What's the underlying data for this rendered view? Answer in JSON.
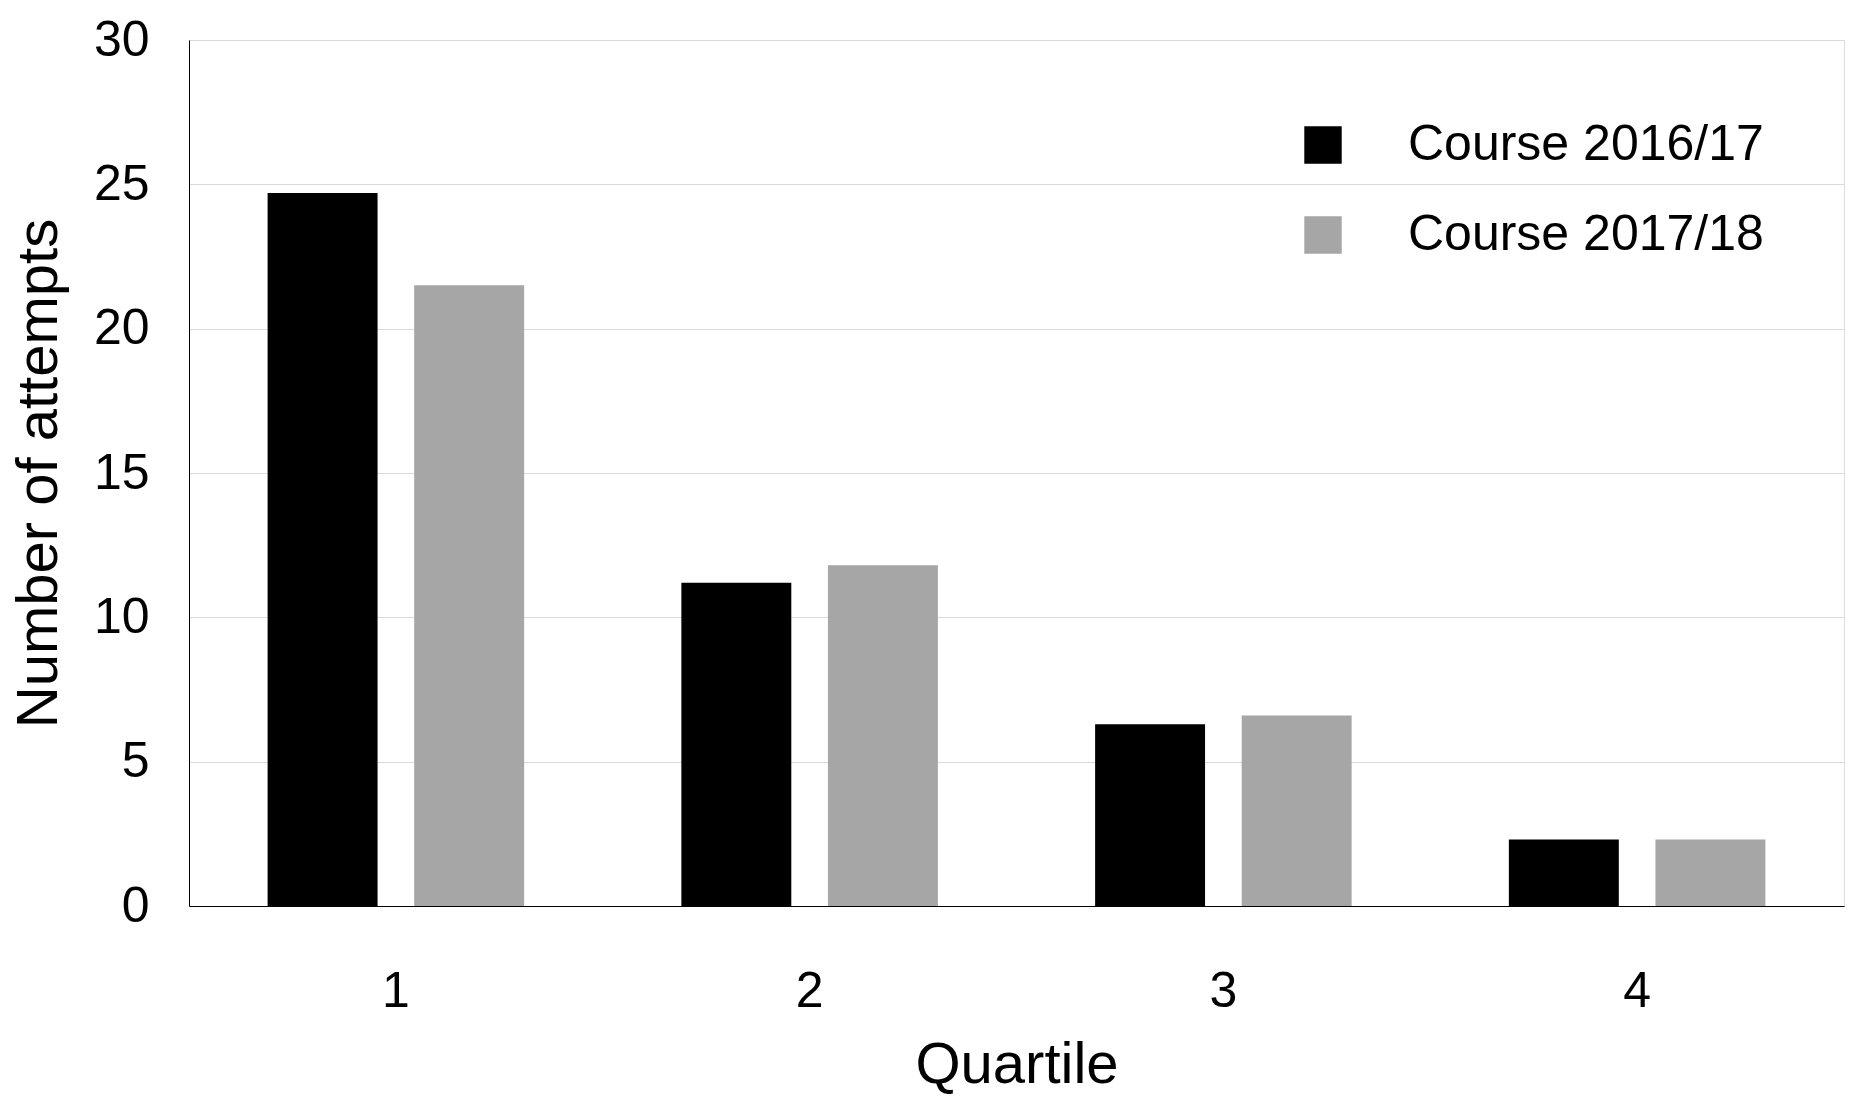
{
  "chart_data": {
    "type": "bar",
    "xlabel": "Quartile",
    "ylabel": "Number of attempts",
    "categories": [
      "1",
      "2",
      "3",
      "4"
    ],
    "series": [
      {
        "name": "Course 2016/17",
        "color": "#000000",
        "values": [
          24.7,
          11.2,
          6.3,
          2.3
        ]
      },
      {
        "name": "Course 2017/18",
        "color": "#a6a6a6",
        "values": [
          21.5,
          11.8,
          6.6,
          2.3
        ]
      }
    ],
    "ylim": [
      0,
      30
    ],
    "yticks": [
      0,
      5,
      10,
      15,
      20,
      25,
      30
    ],
    "grid": "y",
    "legend": "top right"
  }
}
